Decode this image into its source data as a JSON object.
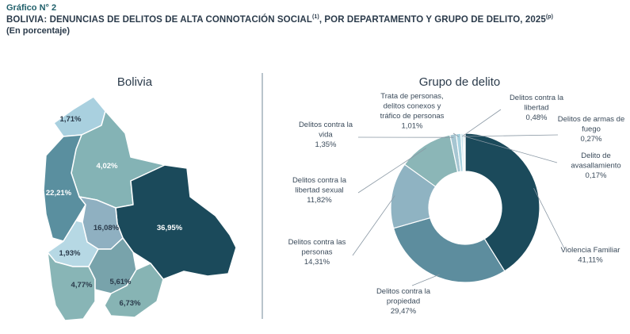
{
  "header": {
    "kicker": "Gráfico N° 2",
    "title_main": "BOLIVIA: DENUNCIAS DE DELITOS DE ALTA CONNOTACIÓN SOCIAL",
    "title_note": "(1)",
    "title_rest": ", POR DEPARTAMENTO Y GRUPO DE DELITO, 2025",
    "title_flag": "(p)",
    "subtitle": "(En porcentaje)"
  },
  "chart_data": [
    {
      "type": "map",
      "title": "Bolivia",
      "regions": [
        {
          "value": 1.71,
          "label": "1,71%",
          "color": "#a9d0df"
        },
        {
          "value": 4.02,
          "label": "4,02%",
          "color": "#84b3b5"
        },
        {
          "value": 22.21,
          "label": "22,21%",
          "color": "#5a8f9f"
        },
        {
          "value": 36.95,
          "label": "36,95%",
          "color": "#1b4a5b"
        },
        {
          "value": 16.08,
          "label": "16,08%",
          "color": "#8fb0c1"
        },
        {
          "value": 1.93,
          "label": "1,93%",
          "color": "#b6d8e4"
        },
        {
          "value": 4.77,
          "label": "4,77%",
          "color": "#88b5b6"
        },
        {
          "value": 5.61,
          "label": "5,61%",
          "color": "#78a3ab"
        },
        {
          "value": 6.73,
          "label": "6,73%",
          "color": "#87b4b4"
        }
      ]
    },
    {
      "type": "pie",
      "donut": true,
      "title": "Grupo de delito",
      "slices": [
        {
          "name": "Violencia Familiar",
          "value": 41.11,
          "label": "41,11%",
          "color": "#1b4a5b"
        },
        {
          "name": "Delitos contra la propiedad",
          "value": 29.47,
          "label": "29,47%",
          "color": "#5d8d9e"
        },
        {
          "name": "Delitos contra las personas",
          "value": 14.31,
          "label": "14,31%",
          "color": "#8fb3c2"
        },
        {
          "name": "Delitos contra la libertad sexual",
          "value": 11.82,
          "label": "11,82%",
          "color": "#8bb6b7"
        },
        {
          "name": "Delitos contra la vida",
          "value": 1.35,
          "label": "1,35%",
          "color": "#a6c6d2"
        },
        {
          "name": "Trata de personas, delitos conexos y tráfico de personas",
          "value": 1.01,
          "label": "1,01%",
          "color": "#a8d2df"
        },
        {
          "name": "Delitos contra la libertad",
          "value": 0.48,
          "label": "0,48%",
          "color": "#c6e3ec"
        },
        {
          "name": "Delitos de armas de fuego",
          "value": 0.27,
          "label": "0,27%",
          "color": "#7fb0b9"
        },
        {
          "name": "Delito de avasallamiento",
          "value": 0.17,
          "label": "0,17%",
          "color": "#3e7785"
        }
      ],
      "label_lines": [
        [
          "Violencia Familiar"
        ],
        [
          "Delitos contra la",
          "propiedad"
        ],
        [
          "Delitos contra las",
          "personas"
        ],
        [
          "Delitos contra la",
          "libertad sexual"
        ],
        [
          "Delitos contra la",
          "vida"
        ],
        [
          "Trata de personas,",
          "delitos conexos y",
          "tráfico de personas"
        ],
        [
          "Delitos contra la",
          "libertad"
        ],
        [
          "Delitos de armas de",
          "fuego"
        ],
        [
          "Delito de",
          "avasallamiento"
        ]
      ]
    }
  ]
}
